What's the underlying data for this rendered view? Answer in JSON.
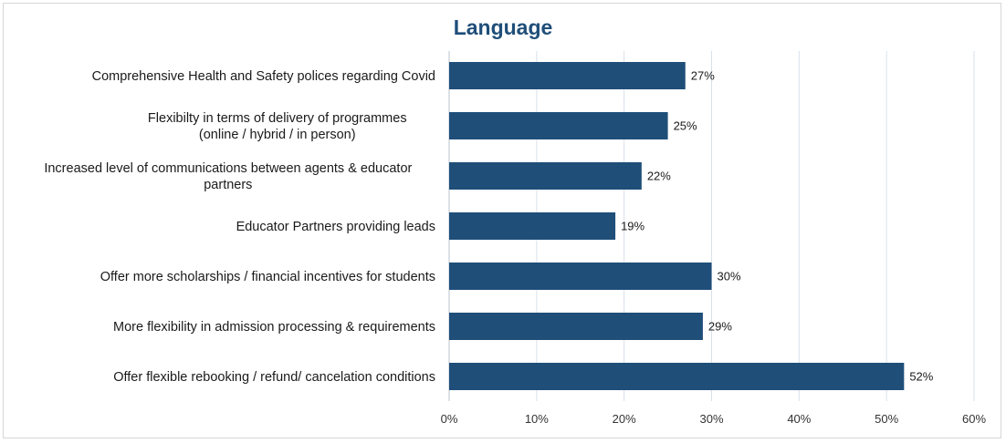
{
  "chart_data": {
    "type": "bar",
    "orientation": "horizontal",
    "title": "Language",
    "categories": [
      [
        "Comprehensive Health and Safety polices regarding Covid"
      ],
      [
        "Flexibilty in terms of delivery of programmes",
        "(online / hybrid / in person)"
      ],
      [
        "Increased level of communications between agents & educator",
        "partners"
      ],
      [
        "Educator Partners providing leads"
      ],
      [
        "Offer more scholarships / financial incentives for students"
      ],
      [
        "More flexibility in admission processing & requirements"
      ],
      [
        "Offer flexible rebooking / refund/ cancelation conditions"
      ]
    ],
    "values": [
      27,
      25,
      22,
      19,
      30,
      29,
      52
    ],
    "value_labels": [
      "27%",
      "25%",
      "22%",
      "19%",
      "30%",
      "29%",
      "52%"
    ],
    "xlim": [
      0,
      60
    ],
    "xticks": [
      0,
      10,
      20,
      30,
      40,
      50,
      60
    ],
    "xtick_labels": [
      "0%",
      "10%",
      "20%",
      "30%",
      "40%",
      "50%",
      "60%"
    ],
    "grid": "vertical",
    "legend": "none",
    "bar_color": "#1f4e79",
    "title_color": "#1f4e79",
    "gridline_color": "#d9e1ea"
  }
}
